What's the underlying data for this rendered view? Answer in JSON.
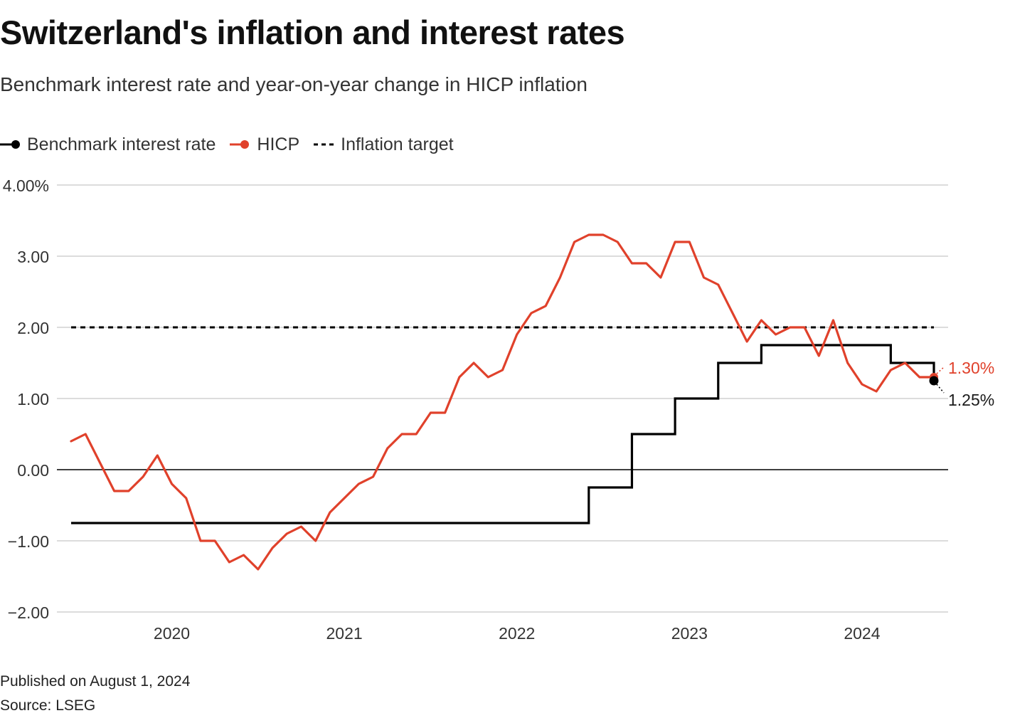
{
  "title": "Switzerland's inflation and interest rates",
  "subtitle": "Benchmark interest rate and year-on-year change in HICP inflation",
  "legend": {
    "rate_label": "Benchmark interest rate",
    "hicp_label": "HICP",
    "target_label": "Inflation target"
  },
  "footer": {
    "published": "Published on August 1, 2024",
    "source": "Source: LSEG"
  },
  "colors": {
    "hicp": "#e0412b",
    "rate": "#000000",
    "target": "#000000",
    "grid": "#c8c8c8",
    "zero_line": "#000000",
    "text": "#333333"
  },
  "chart_data": {
    "type": "line",
    "title": "Switzerland's inflation and interest rates",
    "subtitle": "Benchmark interest rate and year-on-year change in HICP inflation",
    "xlabel": "",
    "ylabel": "",
    "ylim": [
      -2,
      4
    ],
    "xlim": [
      "2019-07",
      "2024-07"
    ],
    "y_ticks": [
      {
        "value": 4,
        "label": "4.00%"
      },
      {
        "value": 3,
        "label": "3.00"
      },
      {
        "value": 2,
        "label": "2.00"
      },
      {
        "value": 1,
        "label": "1.00"
      },
      {
        "value": 0,
        "label": "0.00"
      },
      {
        "value": -1,
        "label": "−1.00"
      },
      {
        "value": -2,
        "label": "−2.00"
      }
    ],
    "x_ticks": [
      {
        "value": "2020-01",
        "label": "2020"
      },
      {
        "value": "2021-01",
        "label": "2021"
      },
      {
        "value": "2022-01",
        "label": "2022"
      },
      {
        "value": "2023-01",
        "label": "2023"
      },
      {
        "value": "2024-01",
        "label": "2024"
      }
    ],
    "grid": true,
    "legend_position": "top-left",
    "series": [
      {
        "name": "HICP",
        "style": "line",
        "x": [
          "2019-06",
          "2019-07",
          "2019-08",
          "2019-09",
          "2019-10",
          "2019-11",
          "2019-12",
          "2020-01",
          "2020-02",
          "2020-03",
          "2020-04",
          "2020-05",
          "2020-06",
          "2020-07",
          "2020-08",
          "2020-09",
          "2020-10",
          "2020-11",
          "2020-12",
          "2021-01",
          "2021-02",
          "2021-03",
          "2021-04",
          "2021-05",
          "2021-06",
          "2021-07",
          "2021-08",
          "2021-09",
          "2021-10",
          "2021-11",
          "2021-12",
          "2022-01",
          "2022-02",
          "2022-03",
          "2022-04",
          "2022-05",
          "2022-06",
          "2022-07",
          "2022-08",
          "2022-09",
          "2022-10",
          "2022-11",
          "2022-12",
          "2023-01",
          "2023-02",
          "2023-03",
          "2023-04",
          "2023-05",
          "2023-06",
          "2023-07",
          "2023-08",
          "2023-09",
          "2023-10",
          "2023-11",
          "2023-12",
          "2024-01",
          "2024-02",
          "2024-03",
          "2024-04",
          "2024-05",
          "2024-06"
        ],
        "values": [
          0.4,
          0.5,
          0.1,
          -0.3,
          -0.3,
          -0.1,
          0.2,
          -0.2,
          -0.4,
          -1.0,
          -1.0,
          -1.3,
          -1.2,
          -1.4,
          -1.1,
          -0.9,
          -0.8,
          -1.0,
          -0.6,
          -0.4,
          -0.2,
          -0.1,
          0.3,
          0.5,
          0.5,
          0.8,
          0.8,
          1.3,
          1.5,
          1.3,
          1.4,
          1.9,
          2.2,
          2.3,
          2.7,
          3.2,
          3.3,
          3.3,
          3.2,
          2.9,
          2.9,
          2.7,
          3.2,
          3.2,
          2.7,
          2.6,
          2.2,
          1.8,
          2.1,
          1.9,
          2.0,
          2.0,
          1.6,
          2.1,
          1.5,
          1.2,
          1.1,
          1.4,
          1.5,
          1.3,
          1.3
        ],
        "end_label": "1.30%"
      },
      {
        "name": "Benchmark interest rate",
        "style": "step",
        "steps": [
          {
            "from": "2019-06",
            "value": -0.75
          },
          {
            "from": "2022-06",
            "value": -0.25
          },
          {
            "from": "2022-09",
            "value": 0.5
          },
          {
            "from": "2022-12",
            "value": 1.0
          },
          {
            "from": "2023-03",
            "value": 1.5
          },
          {
            "from": "2023-06",
            "value": 1.75
          },
          {
            "from": "2024-03",
            "value": 1.5
          },
          {
            "from": "2024-06",
            "value": 1.25
          }
        ],
        "end": "2024-06",
        "end_label": "1.25%"
      },
      {
        "name": "Inflation target",
        "style": "dashed",
        "from": "2019-06",
        "to": "2024-06",
        "value": 2.0
      }
    ]
  }
}
